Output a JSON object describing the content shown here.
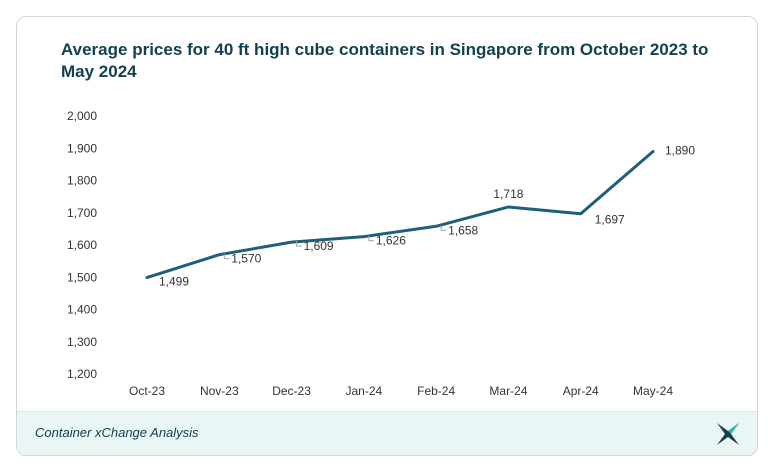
{
  "chart_data": {
    "type": "line",
    "title": "Average prices for 40 ft high cube containers in Singapore from October 2023 to May 2024",
    "categories": [
      "Oct-23",
      "Nov-23",
      "Dec-23",
      "Jan-24",
      "Feb-24",
      "Mar-24",
      "Apr-24",
      "May-24"
    ],
    "series": [
      {
        "values": [
          1499,
          1570,
          1609,
          1626,
          1658,
          1718,
          1697,
          1890
        ]
      }
    ],
    "data_labels": [
      "1,499",
      "1,570",
      "1,609",
      "1,626",
      "1,658",
      "1,718",
      "1,697",
      "1,890"
    ],
    "y_ticks": [
      "1,200",
      "1,300",
      "1,400",
      "1,500",
      "1,600",
      "1,700",
      "1,800",
      "1,900",
      "2,000"
    ],
    "ylim": [
      1200,
      2000
    ],
    "xlabel": "",
    "ylabel": "",
    "grid": false,
    "line_color": "#1f5f7a"
  },
  "footer": {
    "source": "Container xChange Analysis",
    "logo_icon": "xchange-logo-icon"
  }
}
